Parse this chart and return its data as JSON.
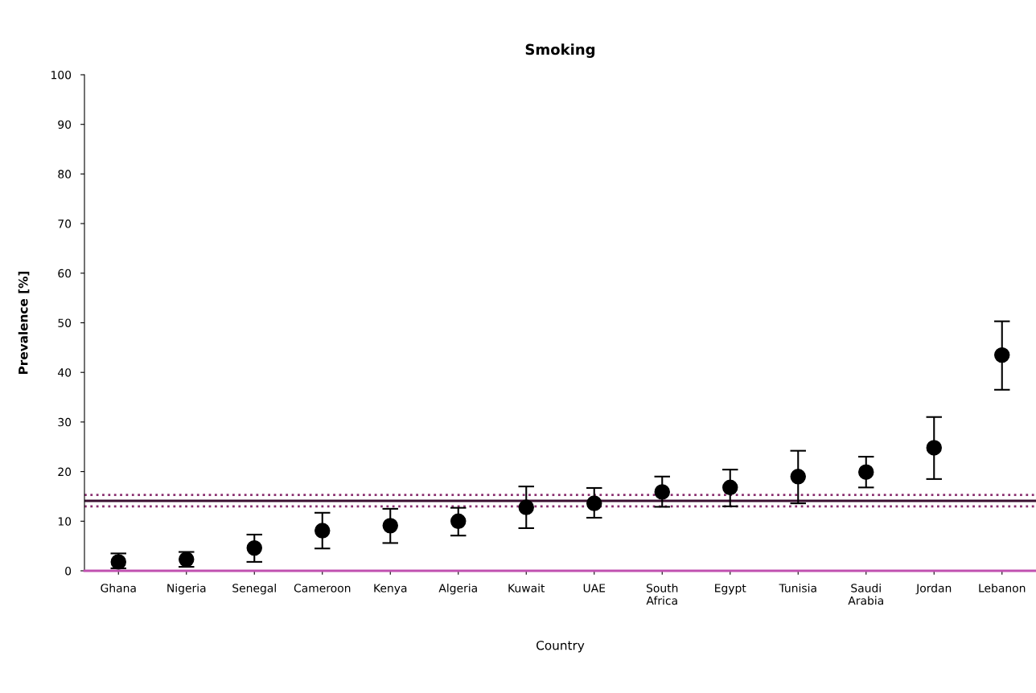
{
  "chart_data": {
    "type": "scatter",
    "title": "Smoking",
    "xlabel": "Country",
    "ylabel": "Prevalence [%]",
    "categories": [
      "Ghana",
      "Nigeria",
      "Senegal",
      "Cameroon",
      "Kenya",
      "Algeria",
      "Kuwait",
      "UAE",
      "South\nAfrica",
      "Egypt",
      "Tunisia",
      "Saudi\nArabia",
      "Jordan",
      "Lebanon"
    ],
    "series": [
      {
        "color": "#000000",
        "values": [
          1.8,
          2.3,
          4.6,
          8.1,
          9.1,
          10.0,
          12.8,
          13.6,
          15.9,
          16.8,
          19.0,
          19.9,
          24.8,
          43.5
        ],
        "errors": [
          [
            0.5,
            3.5
          ],
          [
            0.8,
            3.8
          ],
          [
            1.8,
            7.3
          ],
          [
            4.5,
            11.7
          ],
          [
            5.6,
            12.5
          ],
          [
            7.1,
            12.7
          ],
          [
            8.6,
            17.0
          ],
          [
            10.7,
            16.7
          ],
          [
            12.9,
            19.0
          ],
          [
            13.0,
            20.4
          ],
          [
            13.6,
            24.2
          ],
          [
            16.8,
            23.0
          ],
          [
            18.5,
            31.0
          ],
          [
            36.5,
            50.3
          ]
        ]
      }
    ],
    "ylim": [
      0,
      100
    ],
    "yticks": [
      0,
      10,
      20,
      30,
      40,
      50,
      60,
      70,
      80,
      90,
      100
    ],
    "ref_lines": [
      {
        "axis": "y",
        "value": 14.1,
        "color": "#3a1030",
        "line_style": "solid"
      },
      {
        "axis": "y",
        "value": 15.3,
        "color": "#8a3070",
        "line_style": "dotted"
      },
      {
        "axis": "y",
        "value": 13.0,
        "color": "#8a3070",
        "line_style": "dotted"
      }
    ],
    "marker": "circle",
    "grid": false,
    "legend": false
  }
}
